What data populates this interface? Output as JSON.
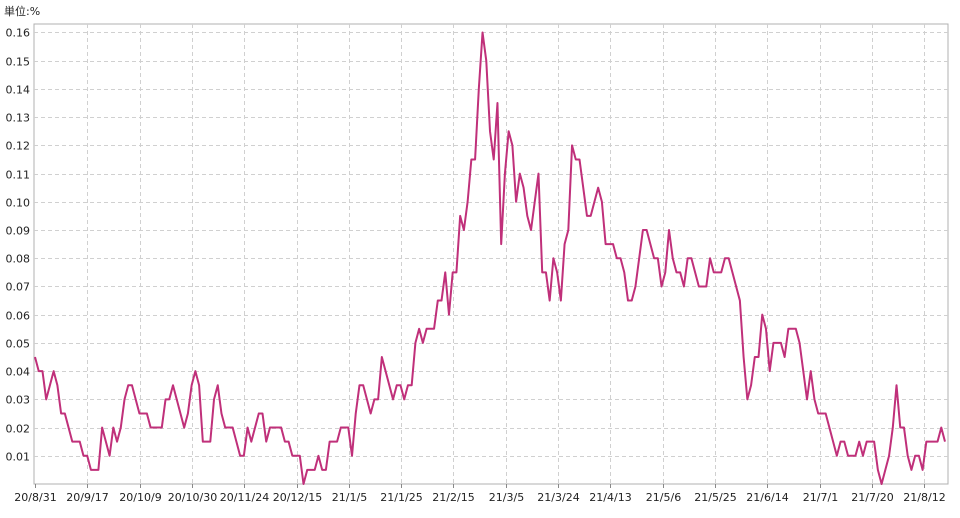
{
  "unit_label": "単位:%",
  "chart_data": {
    "type": "line",
    "title": "",
    "xlabel": "",
    "ylabel": "",
    "ylim": [
      0,
      0.163
    ],
    "y_ticks": [
      "0.01",
      "0.02",
      "0.03",
      "0.04",
      "0.05",
      "0.06",
      "0.07",
      "0.08",
      "0.09",
      "0.10",
      "0.11",
      "0.12",
      "0.13",
      "0.14",
      "0.15",
      "0.16"
    ],
    "x_tick_labels": [
      "20/8/31",
      "20/9/17",
      "20/10/9",
      "20/10/30",
      "20/11/24",
      "20/12/15",
      "21/1/5",
      "21/1/25",
      "21/2/15",
      "21/3/5",
      "21/3/24",
      "21/4/13",
      "21/5/6",
      "21/5/25",
      "21/6/14",
      "21/7/1",
      "21/7/20",
      "21/8/12"
    ],
    "grid": true,
    "line_color": "#c0307a",
    "series": [
      {
        "values": [
          0.045,
          0.04,
          0.04,
          0.03,
          0.035,
          0.04,
          0.035,
          0.025,
          0.025,
          0.02,
          0.015,
          0.015,
          0.015,
          0.01,
          0.01,
          0.005,
          0.005,
          0.005,
          0.02,
          0.015,
          0.01,
          0.02,
          0.015,
          0.02,
          0.03,
          0.035,
          0.035,
          0.03,
          0.025,
          0.025,
          0.025,
          0.02,
          0.02,
          0.02,
          0.02,
          0.03,
          0.03,
          0.035,
          0.03,
          0.025,
          0.02,
          0.025,
          0.035,
          0.04,
          0.035,
          0.015,
          0.015,
          0.015,
          0.03,
          0.035,
          0.025,
          0.02,
          0.02,
          0.02,
          0.015,
          0.01,
          0.01,
          0.02,
          0.015,
          0.02,
          0.025,
          0.025,
          0.015,
          0.02,
          0.02,
          0.02,
          0.02,
          0.015,
          0.015,
          0.01,
          0.01,
          0.01,
          0.0,
          0.005,
          0.005,
          0.005,
          0.01,
          0.005,
          0.005,
          0.015,
          0.015,
          0.015,
          0.02,
          0.02,
          0.02,
          0.01,
          0.025,
          0.035,
          0.035,
          0.03,
          0.025,
          0.03,
          0.03,
          0.045,
          0.04,
          0.035,
          0.03,
          0.035,
          0.035,
          0.03,
          0.035,
          0.035,
          0.05,
          0.055,
          0.05,
          0.055,
          0.055,
          0.055,
          0.065,
          0.065,
          0.075,
          0.06,
          0.075,
          0.075,
          0.095,
          0.09,
          0.1,
          0.115,
          0.115,
          0.14,
          0.16,
          0.15,
          0.125,
          0.115,
          0.135,
          0.085,
          0.11,
          0.125,
          0.12,
          0.1,
          0.11,
          0.105,
          0.095,
          0.09,
          0.1,
          0.11,
          0.075,
          0.075,
          0.065,
          0.08,
          0.075,
          0.065,
          0.085,
          0.09,
          0.12,
          0.115,
          0.115,
          0.105,
          0.095,
          0.095,
          0.1,
          0.105,
          0.1,
          0.085,
          0.085,
          0.085,
          0.08,
          0.08,
          0.075,
          0.065,
          0.065,
          0.07,
          0.08,
          0.09,
          0.09,
          0.085,
          0.08,
          0.08,
          0.07,
          0.075,
          0.09,
          0.08,
          0.075,
          0.075,
          0.07,
          0.08,
          0.08,
          0.075,
          0.07,
          0.07,
          0.07,
          0.08,
          0.075,
          0.075,
          0.075,
          0.08,
          0.08,
          0.075,
          0.07,
          0.065,
          0.045,
          0.03,
          0.035,
          0.045,
          0.045,
          0.06,
          0.055,
          0.04,
          0.05,
          0.05,
          0.05,
          0.045,
          0.055,
          0.055,
          0.055,
          0.05,
          0.04,
          0.03,
          0.04,
          0.03,
          0.025,
          0.025,
          0.025,
          0.02,
          0.015,
          0.01,
          0.015,
          0.015,
          0.01,
          0.01,
          0.01,
          0.015,
          0.01,
          0.015,
          0.015,
          0.015,
          0.005,
          0.0,
          0.005,
          0.01,
          0.02,
          0.035,
          0.02,
          0.02,
          0.01,
          0.005,
          0.01,
          0.01,
          0.005,
          0.015,
          0.015,
          0.015,
          0.015,
          0.02,
          0.015
        ]
      }
    ]
  }
}
